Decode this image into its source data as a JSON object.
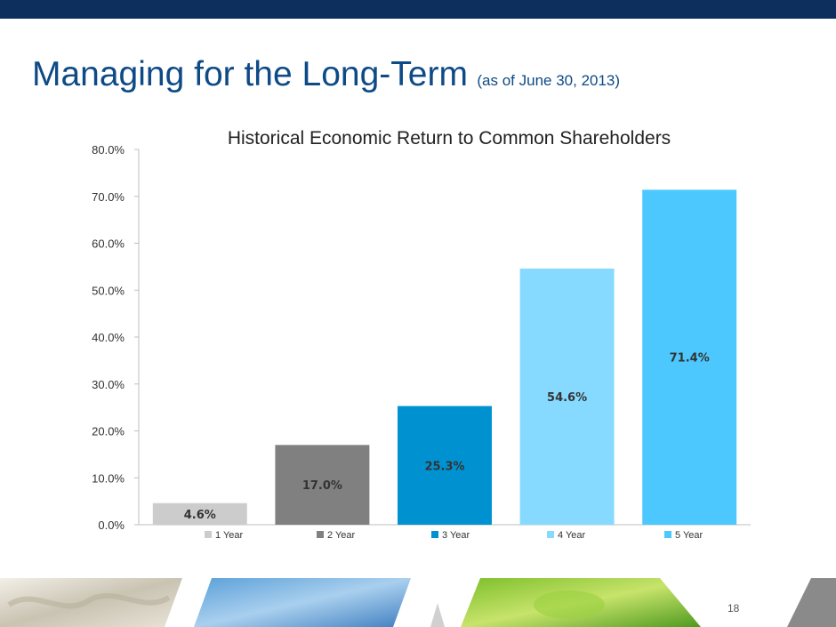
{
  "slide": {
    "title": "Managing for the Long-Term",
    "subtitle": "(as of June 30, 2013)",
    "page_number": "18"
  },
  "colors": {
    "topbar": "#0d2f5e",
    "title": "#0d4a86"
  },
  "chart_data": {
    "type": "bar",
    "title": "Historical Economic Return to Common Shareholders",
    "categories": [
      "1 Year",
      "2 Year",
      "3 Year",
      "4 Year",
      "5 Year"
    ],
    "values": [
      4.6,
      17.0,
      25.3,
      54.6,
      71.4
    ],
    "data_labels": [
      "4.6%",
      "17.0%",
      "25.3%",
      "54.6%",
      "71.4%"
    ],
    "colors": [
      "#cccccc",
      "#808080",
      "#0092d0",
      "#87daff",
      "#4cc8ff"
    ],
    "ylim": [
      0,
      80
    ],
    "yticks": [
      0,
      10,
      20,
      30,
      40,
      50,
      60,
      70,
      80
    ],
    "ytick_labels": [
      "0.0%",
      "10.0%",
      "20.0%",
      "30.0%",
      "40.0%",
      "50.0%",
      "60.0%",
      "70.0%",
      "80.0%"
    ],
    "legend": {
      "position": "bottom",
      "entries": [
        "1 Year",
        "2 Year",
        "3 Year",
        "4 Year",
        "5 Year"
      ]
    },
    "grid": false
  }
}
